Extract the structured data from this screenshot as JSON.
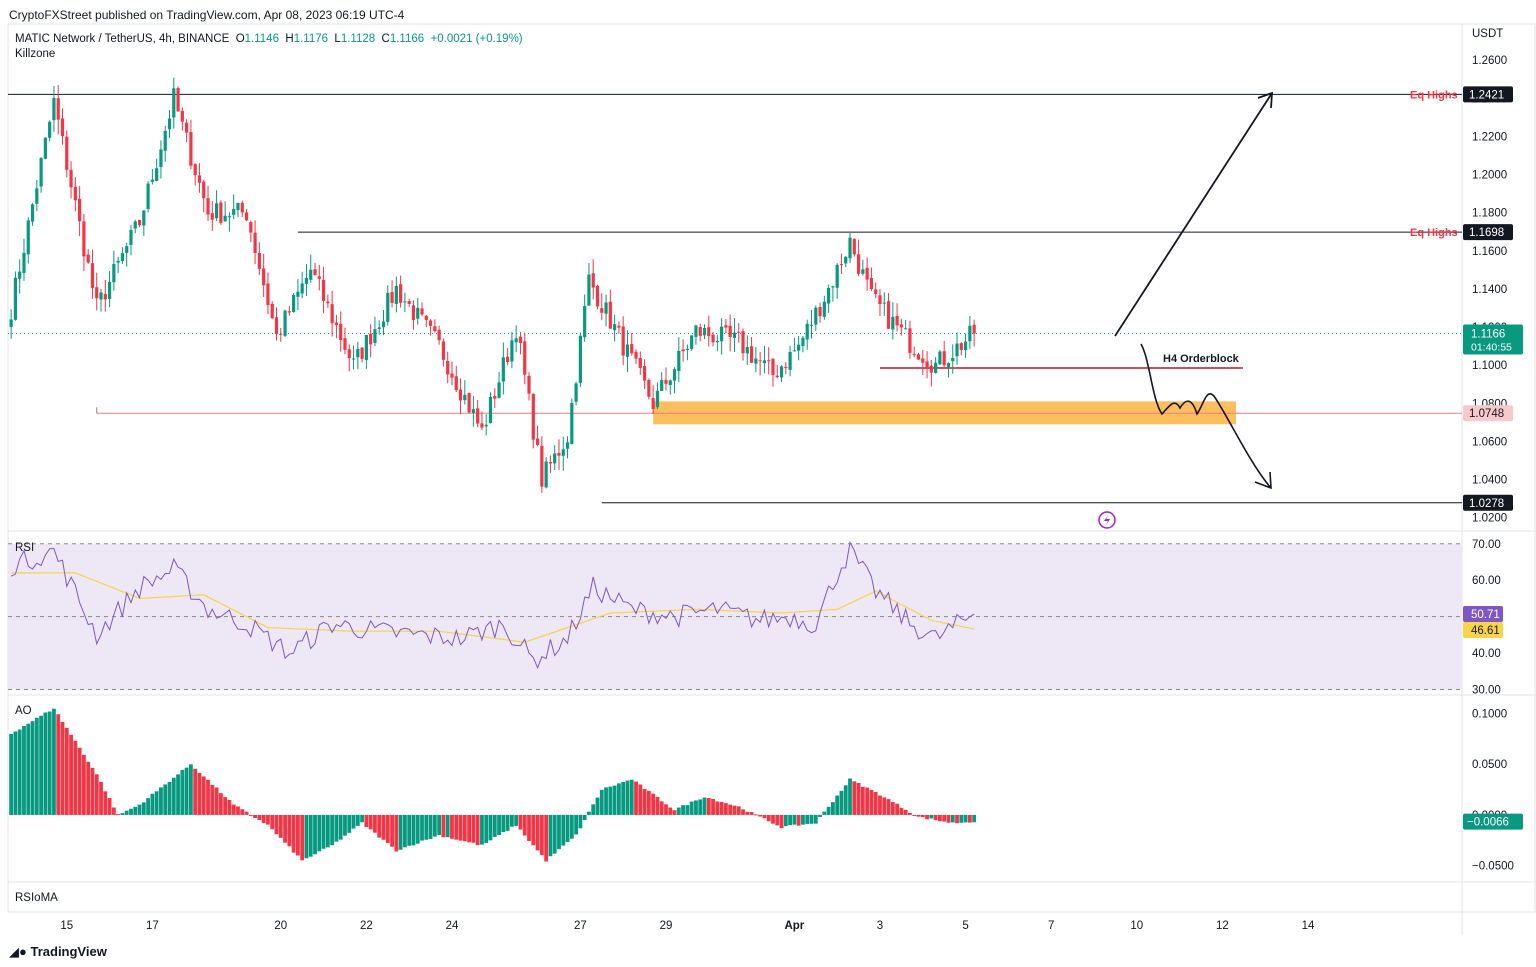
{
  "header": {
    "published": "CryptoFXStreet published on TradingView.com, Apr 08, 2023 06:19 UTC-4",
    "symbol": "MATIC Network / TetherUS, 4h, BINANCE",
    "open_label": "O",
    "open": "1.1146",
    "high_label": "H",
    "high": "1.1176",
    "low_label": "L",
    "low": "1.1128",
    "close_label": "C",
    "close": "1.1166",
    "change": "+0.0021 (+0.19%)",
    "indicator": "Killzone",
    "currency": "USDT"
  },
  "footer": {
    "logo": "TradingView"
  },
  "colors": {
    "up": "#089981",
    "down": "#f23645",
    "rsi": "#7e57c2",
    "rsi_ma": "#f7d44a",
    "rsi_band": "#ede7f6",
    "orderblock_zone": "#ffb74d",
    "level_red": "#f23645",
    "level_black": "#131722"
  },
  "chart_data": [
    {
      "type": "candlestick",
      "title": "MATIC Network / TetherUS, 4h, BINANCE",
      "x_tick_labels": [
        "15",
        "17",
        "20",
        "22",
        "24",
        "27",
        "29",
        "Apr",
        "3",
        "5",
        "7",
        "10",
        "12",
        "14"
      ],
      "y_tick_labels": [
        "1.2600",
        "1.2400",
        "1.2200",
        "1.2000",
        "1.1800",
        "1.1600",
        "1.1400",
        "1.1200",
        "1.1000",
        "1.0800",
        "1.0600",
        "1.0400",
        "1.0200"
      ],
      "ylim": [
        1.013,
        1.279
      ],
      "current_price": {
        "value": 1.1166,
        "label": "1.1166",
        "countdown": "01:40:55"
      },
      "levels": [
        {
          "value": 1.2421,
          "label": "1.2421",
          "annotation": "Eq Highs"
        },
        {
          "value": 1.1698,
          "label": "1.1698",
          "annotation": "Eq Highs"
        },
        {
          "value": 1.0748,
          "label": "1.0748"
        },
        {
          "value": 1.0278,
          "label": "1.0278"
        }
      ],
      "annotations": [
        {
          "text": "H4 Orderblock",
          "value": 1.0985
        }
      ],
      "orderblock_zone": [
        1.069,
        1.081
      ],
      "anchors": [
        {
          "bar": 0,
          "c": 1.13
        },
        {
          "bar": 10,
          "c": 1.238
        },
        {
          "bar": 20,
          "c": 1.13
        },
        {
          "bar": 30,
          "c": 1.175
        },
        {
          "bar": 38,
          "c": 1.24
        },
        {
          "bar": 46,
          "c": 1.18
        },
        {
          "bar": 55,
          "c": 1.18
        },
        {
          "bar": 62,
          "c": 1.115
        },
        {
          "bar": 70,
          "c": 1.15
        },
        {
          "bar": 80,
          "c": 1.1
        },
        {
          "bar": 90,
          "c": 1.14
        },
        {
          "bar": 100,
          "c": 1.11
        },
        {
          "bar": 110,
          "c": 1.065
        },
        {
          "bar": 118,
          "c": 1.12
        },
        {
          "bar": 124,
          "c": 1.04
        },
        {
          "bar": 130,
          "c": 1.063
        },
        {
          "bar": 135,
          "c": 1.145
        },
        {
          "bar": 142,
          "c": 1.115
        },
        {
          "bar": 150,
          "c": 1.08
        },
        {
          "bar": 160,
          "c": 1.118
        },
        {
          "bar": 170,
          "c": 1.112
        },
        {
          "bar": 178,
          "c": 1.095
        },
        {
          "bar": 184,
          "c": 1.11
        },
        {
          "bar": 191,
          "c": 1.14
        },
        {
          "bar": 196,
          "c": 1.165
        },
        {
          "bar": 201,
          "c": 1.135
        },
        {
          "bar": 210,
          "c": 1.112
        },
        {
          "bar": 216,
          "c": 1.1
        },
        {
          "bar": 225,
          "c": 1.1166
        }
      ]
    },
    {
      "type": "line",
      "title": "RSI",
      "y_tick_labels": [
        "70.00",
        "60.00",
        "50.00",
        "40.00",
        "30.00"
      ],
      "ylim": [
        28.5,
        73.5
      ],
      "band": [
        30,
        70
      ],
      "midline": 50,
      "rsi_value": "50.71",
      "ma_value": "46.61",
      "rsi_anchors": [
        [
          0,
          64
        ],
        [
          10,
          68
        ],
        [
          20,
          45
        ],
        [
          30,
          58
        ],
        [
          38,
          63
        ],
        [
          46,
          52
        ],
        [
          55,
          48
        ],
        [
          65,
          40
        ],
        [
          75,
          48
        ],
        [
          85,
          46
        ],
        [
          95,
          45
        ],
        [
          105,
          44
        ],
        [
          115,
          48
        ],
        [
          122,
          38
        ],
        [
          130,
          44
        ],
        [
          136,
          58
        ],
        [
          145,
          52
        ],
        [
          155,
          50
        ],
        [
          165,
          52
        ],
        [
          175,
          49
        ],
        [
          182,
          50
        ],
        [
          188,
          48
        ],
        [
          193,
          62
        ],
        [
          196,
          68
        ],
        [
          202,
          57
        ],
        [
          210,
          48
        ],
        [
          216,
          44
        ],
        [
          225,
          50.71
        ]
      ],
      "ma_anchors": [
        [
          0,
          62
        ],
        [
          15,
          62
        ],
        [
          30,
          55
        ],
        [
          45,
          56
        ],
        [
          60,
          47
        ],
        [
          80,
          46
        ],
        [
          100,
          46
        ],
        [
          120,
          43
        ],
        [
          140,
          51
        ],
        [
          160,
          52
        ],
        [
          180,
          51
        ],
        [
          193,
          52
        ],
        [
          202,
          57
        ],
        [
          215,
          49
        ],
        [
          225,
          46.61
        ]
      ]
    },
    {
      "type": "bar",
      "title": "AO",
      "y_tick_labels": [
        "0.1000",
        "0.0500",
        "0.0000",
        "−0.0500"
      ],
      "ylim": [
        -0.066,
        0.118
      ],
      "current_value": "−0.0066",
      "anchors": [
        [
          0,
          0.08
        ],
        [
          10,
          0.105
        ],
        [
          20,
          0.04
        ],
        [
          25,
          0.0
        ],
        [
          30,
          0.01
        ],
        [
          42,
          0.05
        ],
        [
          52,
          0.01
        ],
        [
          60,
          -0.01
        ],
        [
          68,
          -0.045
        ],
        [
          75,
          -0.03
        ],
        [
          82,
          -0.008
        ],
        [
          90,
          -0.035
        ],
        [
          100,
          -0.02
        ],
        [
          110,
          -0.03
        ],
        [
          118,
          -0.01
        ],
        [
          125,
          -0.045
        ],
        [
          132,
          -0.02
        ],
        [
          138,
          0.025
        ],
        [
          145,
          0.035
        ],
        [
          155,
          0.005
        ],
        [
          162,
          0.018
        ],
        [
          170,
          0.008
        ],
        [
          180,
          -0.012
        ],
        [
          188,
          -0.008
        ],
        [
          196,
          0.035
        ],
        [
          203,
          0.02
        ],
        [
          212,
          -0.002
        ],
        [
          220,
          -0.008
        ],
        [
          225,
          -0.0066
        ]
      ]
    },
    {
      "type": "line",
      "title": "RSIoMA"
    }
  ]
}
